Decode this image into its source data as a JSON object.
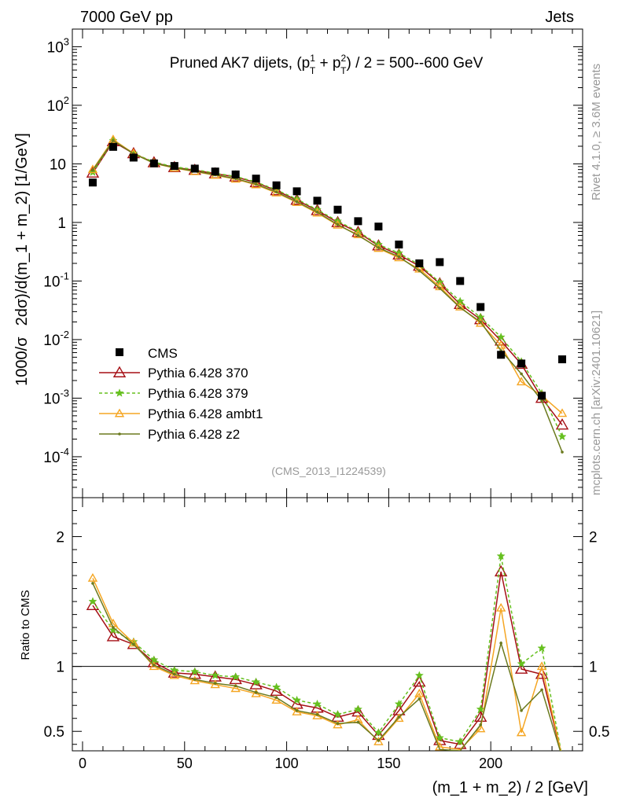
{
  "header": {
    "left": "7000 GeV pp",
    "right": "Jets"
  },
  "side_texts": {
    "right_top": "Rivet 4.1.0, ≥ 3.6M events",
    "right_bottom": "mcplots.cern.ch [arXiv:2401.10621]"
  },
  "chart_data": {
    "type": "line",
    "title_main": "Pruned AK7 dijets, (p",
    "title_sup1": "1",
    "title_sub1": "T",
    "title_mid": " + p",
    "title_sup2": "2",
    "title_sub2": "T",
    "title_end": ") / 2 = 500--600 GeV",
    "analysis_tag": "(CMS_2013_I1224539)",
    "xlabel": "(m_1 + m_2) / 2 [GeV]",
    "ylabel_prefix": "1000/σ",
    "ylabel_main": "2dσ)/d(m_1 + m_2) [1/GeV]",
    "ratio_ylabel": "Ratio to CMS",
    "xlim": [
      -5,
      245
    ],
    "ylim": [
      2e-05,
      2000
    ],
    "ratio_ylim": [
      0.35,
      2.3
    ],
    "x_ticks": [
      0,
      50,
      100,
      150,
      200
    ],
    "x_tick_labels": [
      "0",
      "50",
      "100",
      "150",
      "200"
    ],
    "y_ticks": [
      0.0001,
      0.001,
      0.01,
      0.1,
      1,
      10,
      100,
      1000
    ],
    "y_tick_labels": [
      {
        "base": "10",
        "exp": "-4"
      },
      {
        "base": "10",
        "exp": "-3"
      },
      {
        "base": "10",
        "exp": "-2"
      },
      {
        "base": "10",
        "exp": "-1"
      },
      {
        "base": "1",
        "exp": ""
      },
      {
        "base": "10",
        "exp": ""
      },
      {
        "base": "10",
        "exp": "2"
      },
      {
        "base": "10",
        "exp": "3"
      }
    ],
    "ratio_ticks": [
      0.5,
      1,
      2
    ],
    "ratio_tick_labels": [
      "0.5",
      "1",
      "2"
    ],
    "x": [
      5,
      15,
      25,
      35,
      45,
      55,
      65,
      75,
      85,
      95,
      105,
      115,
      125,
      135,
      145,
      155,
      165,
      175,
      185,
      195,
      205,
      215,
      225,
      235
    ],
    "data": {
      "name": "CMS",
      "color": "#000000",
      "values": [
        4.8,
        19.5,
        12.8,
        10.2,
        9.2,
        8.3,
        7.4,
        6.6,
        5.6,
        4.3,
        3.4,
        2.35,
        1.65,
        1.05,
        0.85,
        0.42,
        0.2,
        0.21,
        0.1,
        0.036,
        0.0055,
        0.0039,
        0.0011,
        0.0046
      ]
    },
    "series": [
      {
        "name": "Pythia 6.428 370",
        "color": "#a50f15",
        "marker": "triangle-open",
        "dash": "",
        "values": [
          7.0,
          24,
          15.0,
          10.5,
          8.7,
          7.8,
          6.8,
          6.0,
          4.8,
          3.5,
          2.4,
          1.6,
          1.0,
          0.68,
          0.4,
          0.28,
          0.18,
          0.09,
          0.04,
          0.022,
          0.0095,
          0.0038,
          0.001,
          0.00035
        ]
      },
      {
        "name": "Pythia 6.428 379",
        "color": "#66c01f",
        "marker": "star",
        "dash": "4,3",
        "values": [
          7.2,
          25,
          15.2,
          10.7,
          8.9,
          8.0,
          6.9,
          6.1,
          4.9,
          3.6,
          2.5,
          1.65,
          1.05,
          0.7,
          0.42,
          0.3,
          0.19,
          0.095,
          0.045,
          0.024,
          0.011,
          0.0042,
          0.0012,
          0.00022
        ]
      },
      {
        "name": "Pythia 6.428 ambt1",
        "color": "#f5a623",
        "marker": "triangle-open-small",
        "dash": "",
        "values": [
          8.0,
          26,
          15.1,
          10.2,
          8.5,
          7.4,
          6.4,
          5.5,
          4.4,
          3.2,
          2.2,
          1.45,
          0.9,
          0.62,
          0.36,
          0.25,
          0.16,
          0.08,
          0.036,
          0.019,
          0.008,
          0.0019,
          0.0011,
          0.00055
        ]
      },
      {
        "name": "Pythia 6.428 z2",
        "color": "#6b7a1e",
        "marker": "dot",
        "dash": "",
        "values": [
          7.8,
          25,
          14.9,
          10.3,
          8.6,
          7.5,
          6.5,
          5.6,
          4.5,
          3.3,
          2.25,
          1.5,
          0.92,
          0.6,
          0.37,
          0.26,
          0.15,
          0.075,
          0.035,
          0.02,
          0.0065,
          0.0026,
          0.0009,
          0.00012
        ]
      }
    ],
    "ratio_series": [
      {
        "name": "Pythia 6.428 370",
        "values": [
          1.47,
          1.23,
          1.17,
          1.03,
          0.95,
          0.94,
          0.92,
          0.9,
          0.86,
          0.81,
          0.71,
          0.68,
          0.61,
          0.65,
          0.47,
          0.66,
          0.88,
          0.43,
          0.4,
          0.61,
          1.73,
          0.98,
          0.94,
          0.3
        ]
      },
      {
        "name": "Pythia 6.428 379",
        "values": [
          1.5,
          1.28,
          1.19,
          1.05,
          0.97,
          0.96,
          0.93,
          0.92,
          0.88,
          0.84,
          0.74,
          0.71,
          0.63,
          0.67,
          0.49,
          0.71,
          0.93,
          0.45,
          0.42,
          0.67,
          1.85,
          1.02,
          1.14,
          0.3
        ]
      },
      {
        "name": "Pythia 6.428 ambt1",
        "values": [
          1.68,
          1.33,
          1.18,
          1.0,
          0.93,
          0.89,
          0.86,
          0.83,
          0.79,
          0.74,
          0.65,
          0.62,
          0.55,
          0.59,
          0.42,
          0.6,
          0.79,
          0.38,
          0.36,
          0.52,
          1.45,
          0.49,
          1.0,
          0.3
        ]
      },
      {
        "name": "Pythia 6.428 z2",
        "values": [
          1.64,
          1.3,
          1.17,
          1.01,
          0.94,
          0.9,
          0.87,
          0.85,
          0.8,
          0.76,
          0.66,
          0.63,
          0.56,
          0.57,
          0.43,
          0.61,
          0.75,
          0.36,
          0.35,
          0.55,
          1.18,
          0.66,
          0.82,
          0.3
        ]
      }
    ]
  }
}
